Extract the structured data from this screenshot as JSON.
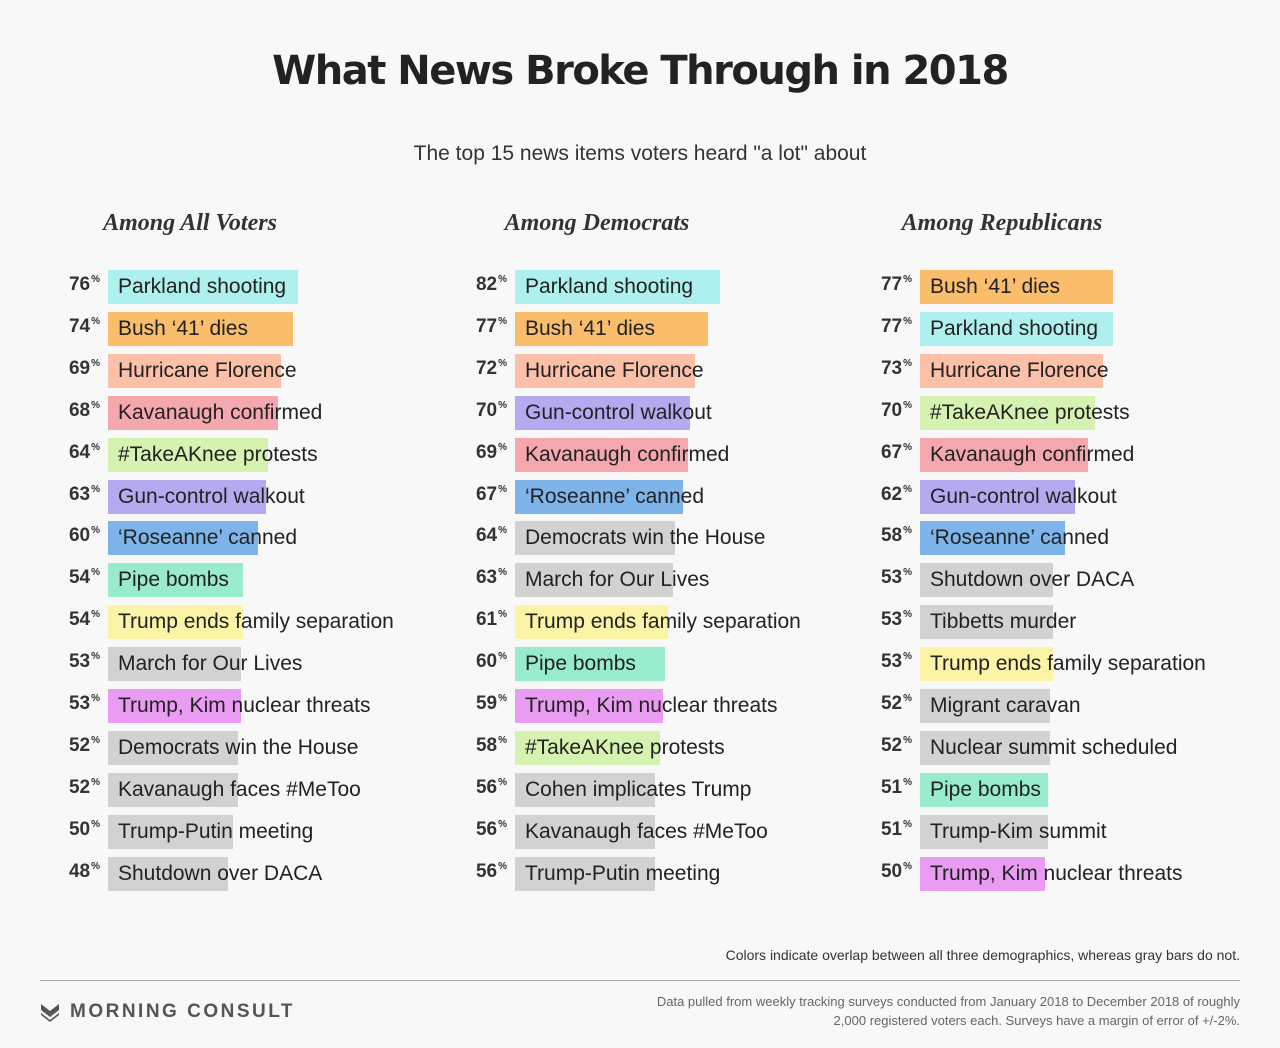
{
  "title": "What News Broke Through in 2018",
  "subtitle": "The top 15 news items voters heard \"a lot\" about",
  "note": "Colors indicate overlap between all three demographics, whereas gray bars do not.",
  "source": "Data pulled from weekly tracking surveys conducted from January 2018 to December 2018 of roughly 2,000 registered voters each. Surveys have a margin of error of +/-2%.",
  "logo_text": "MORNING CONSULT",
  "colors": {
    "Parkland shooting": "#aef0ee",
    "Bush ‘41’ dies": "#f9bd6b",
    "Hurricane Florence": "#fcbfa8",
    "Kavanaugh confirmed": "#f4a7ad",
    "#TakeAKnee protests": "#d6f2b0",
    "Gun-control walkout": "#b6a9f0",
    "‘Roseanne’ canned": "#7eb4ea",
    "Pipe bombs": "#98ebcb",
    "Trump ends family separation": "#fbf3a5",
    "Trump, Kim nuclear threats": "#e99cf2",
    "gray": "#d2d2d2"
  },
  "chart_data": [
    {
      "type": "bar",
      "title": "Among All Voters",
      "categories": [
        "Parkland shooting",
        "Bush ‘41’ dies",
        "Hurricane Florence",
        "Kavanaugh confirmed",
        "#TakeAKnee protests",
        "Gun-control walkout",
        "‘Roseanne’ canned",
        "Pipe bombs",
        "Trump ends family separation",
        "March for Our Lives",
        "Trump, Kim nuclear threats",
        "Democrats win the House",
        "Kavanaugh faces #MeToo",
        "Trump-Putin meeting",
        "Shutdown over DACA"
      ],
      "values": [
        76,
        74,
        69,
        68,
        64,
        63,
        60,
        54,
        54,
        53,
        53,
        52,
        52,
        50,
        48
      ],
      "unit": "%"
    },
    {
      "type": "bar",
      "title": "Among Democrats",
      "categories": [
        "Parkland shooting",
        "Bush ‘41’ dies",
        "Hurricane Florence",
        "Gun-control walkout",
        "Kavanaugh confirmed",
        "‘Roseanne’ canned",
        "Democrats win the House",
        "March for Our Lives",
        "Trump ends family separation",
        "Pipe bombs",
        "Trump, Kim nuclear threats",
        "#TakeAKnee protests",
        "Cohen implicates Trump",
        "Kavanaugh faces #MeToo",
        "Trump-Putin meeting"
      ],
      "values": [
        82,
        77,
        72,
        70,
        69,
        67,
        64,
        63,
        61,
        60,
        59,
        58,
        56,
        56,
        56
      ],
      "unit": "%"
    },
    {
      "type": "bar",
      "title": "Among Republicans",
      "categories": [
        "Bush ‘41’ dies",
        "Parkland shooting",
        "Hurricane Florence",
        "#TakeAKnee protests",
        "Kavanaugh confirmed",
        "Gun-control walkout",
        "‘Roseanne’ canned",
        "Shutdown over DACA",
        "Tibbetts murder",
        "Trump ends family separation",
        "Migrant caravan",
        "Nuclear summit scheduled",
        "Pipe bombs",
        "Trump-Kim summit",
        "Trump, Kim nuclear threats"
      ],
      "values": [
        77,
        77,
        73,
        70,
        67,
        62,
        58,
        53,
        53,
        53,
        52,
        52,
        51,
        51,
        50
      ],
      "unit": "%"
    }
  ]
}
